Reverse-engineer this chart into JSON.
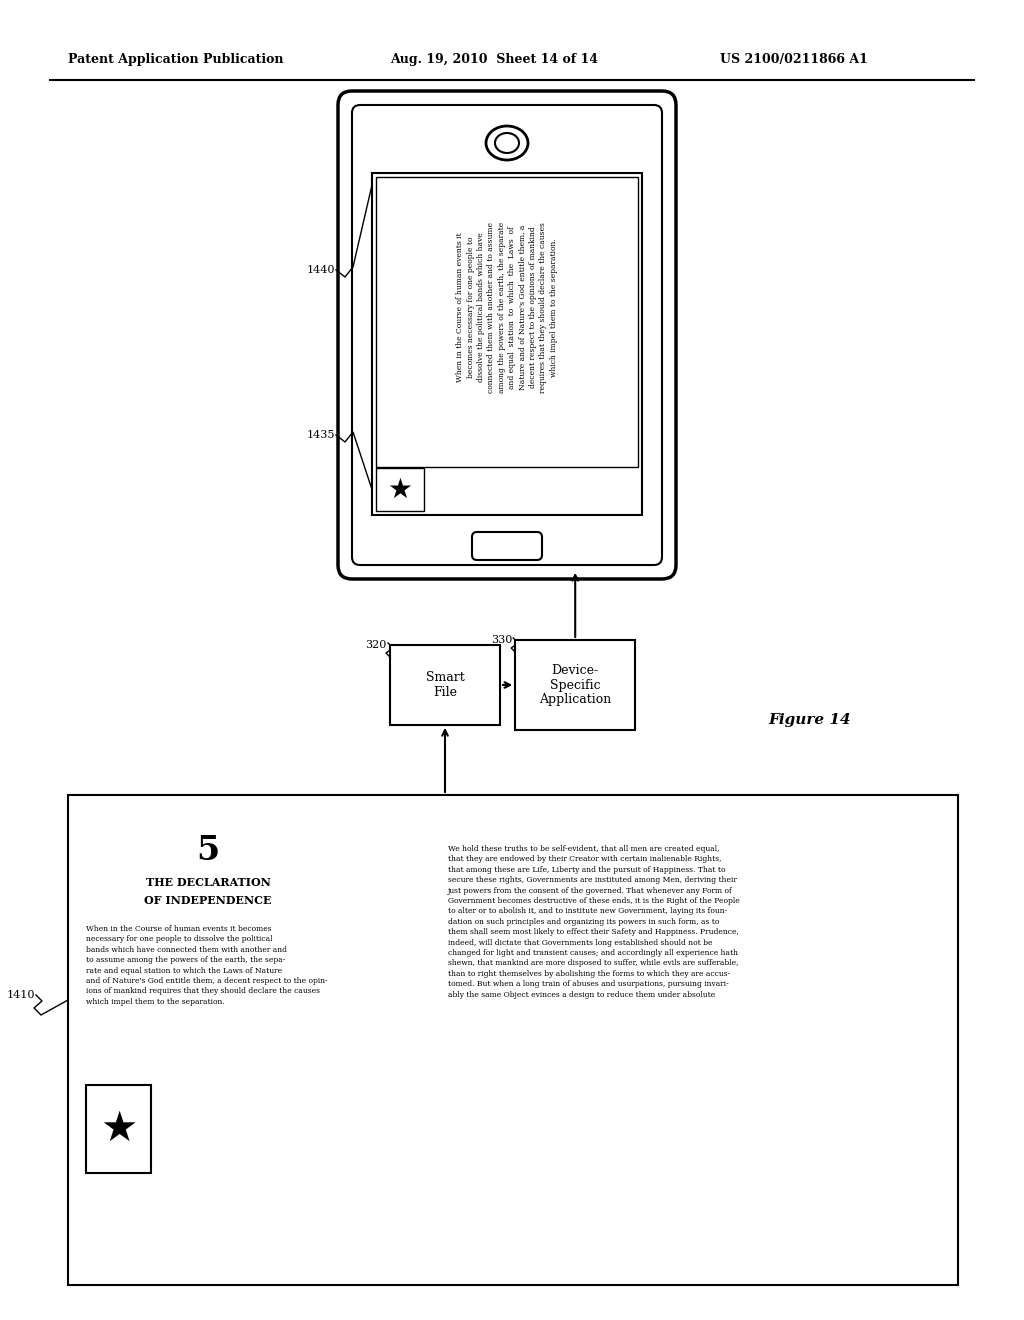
{
  "bg_color": "#ffffff",
  "header_left": "Patent Application Publication",
  "header_mid": "Aug. 19, 2010  Sheet 14 of 14",
  "header_right": "US 2100/0211866 A1",
  "figure_label": "Figure 14",
  "label_1410": "1410",
  "label_1435": "1435",
  "label_1440": "1440",
  "label_320": "320",
  "label_330": "330",
  "box_smart_file": "Smart\nFile",
  "box_device_app": "Device-\nSpecific\nApplication",
  "doi_chapter": "5",
  "doi_title1": "THE DECLARATION",
  "doi_title2": "OF INDEPENDENCE",
  "phone_text": "When in the Course of human events it\nbecomes necessary for one people to\ndissolve the political bands which have\nconnected them with another and to assume\namong the powers of the earth, the separate\nand equal  station  to  which  the  Laws  of\nNature and of Nature's God entitle them, a\ndecent respect to the opinions of mankind\nrequires that they should declare the causes\nwhich impel them to the separation.",
  "doc_left_text": "When in the Course of human events it becomes\nnecessary for one people to dissolve the political\nbands which have connected them with another and\nto assume among the powers of the earth, the sepa-\nrate and equal station to which the Laws of Nature\nand of Nature's God entitle them, a decent respect to the opin-\nions of mankind requires that they should declare the causes\nwhich impel them to the separation.",
  "doc_right_text": "We hold these truths to be self-evident, that all men are created equal,\nthat they are endowed by their Creator with certain inalienable Rights,\nthat among these are Life, Liberty and the pursuit of Happiness. That to\nsecure these rights, Governments are instituted among Men, deriving their\njust powers from the consent of the governed. That whenever any Form of\nGovernment becomes destructive of these ends, it is the Right of the People\nto alter or to abolish it, and to institute new Government, laying its foun-\ndation on such principles and organizing its powers in such form, as to\nthem shall seem most likely to effect their Safety and Happiness. Prudence,\nindeed, will dictate that Governments long established should not be\nchanged for light and transient causes; and accordingly all experience hath\nshewn, that mankind are more disposed to suffer, while evils are sufferable,\nthan to right themselves by abolishing the forms to which they are accus-\ntomed. But when a long train of abuses and usurpations, pursuing invari-\nably the same Object evinces a design to reduce them under absolute"
}
